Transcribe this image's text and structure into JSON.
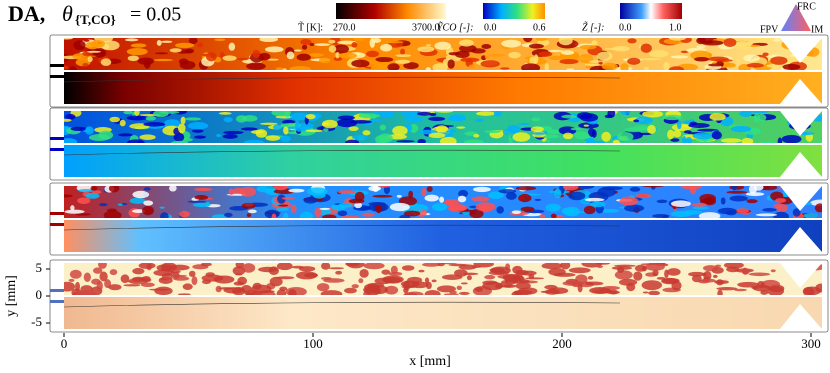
{
  "header": {
    "title": "DA,",
    "theta": "θ",
    "subscript": "{T,CO}",
    "equals": "= 0.05"
  },
  "colorbars": [
    {
      "label": "T̃ [K]:",
      "min": "270.0",
      "max": "3700.0"
    },
    {
      "label": "ỸCO [-]:",
      "min": "0.0",
      "max": "0.6"
    },
    {
      "label": "Z̃ [-]:",
      "min": "0.0",
      "max": "1.0"
    }
  ],
  "legend": {
    "top": "FRC",
    "left": "FPV",
    "right": "IM"
  },
  "axes": {
    "x": {
      "label": "x [mm]",
      "ticks": [
        0,
        100,
        200,
        300
      ]
    },
    "y": {
      "label": "y [mm]",
      "ticks": [
        5,
        0,
        -5
      ]
    }
  }
}
